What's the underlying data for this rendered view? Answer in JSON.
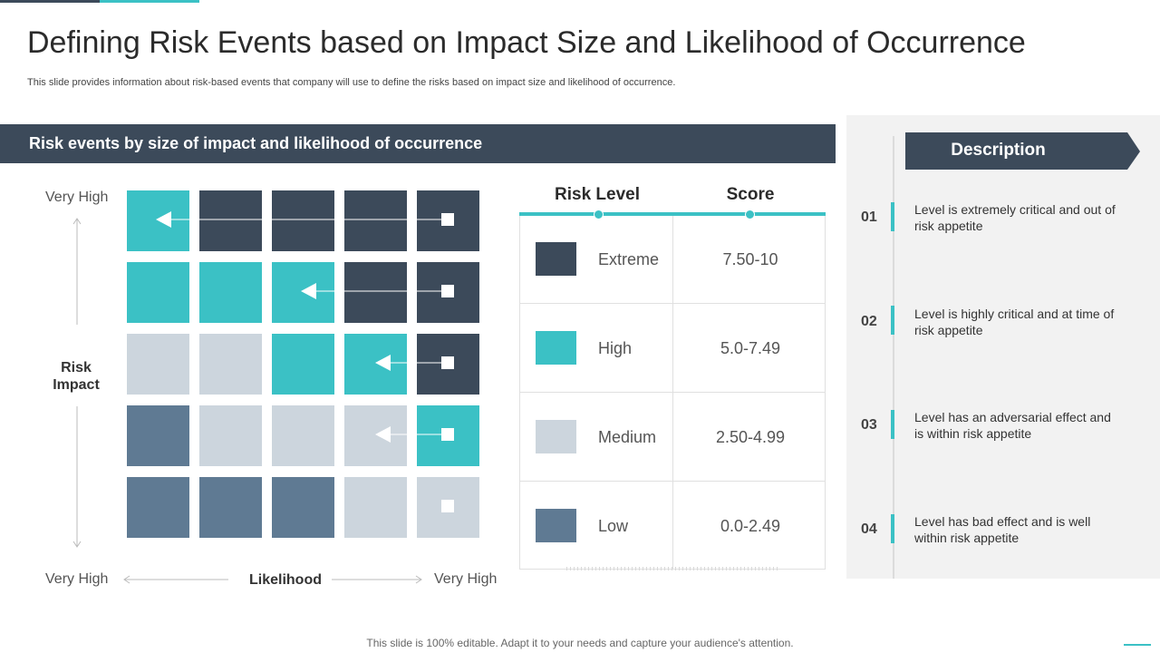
{
  "slide": {
    "title": "Defining Risk Events based on Impact Size and Likelihood of Occurrence",
    "subtitle": "This slide provides information about risk-based events that company will use to define the risks based on impact size and likelihood of occurrence.",
    "banner": "Risk events by size of impact and likelihood of occurrence",
    "footer": "This slide is 100% editable. Adapt it to your needs and capture your audience's attention."
  },
  "matrix": {
    "y_top_label": "Very High",
    "y_axis_label": "Risk Impact",
    "x_left_label": "Very High",
    "x_axis_label": "Likelihood",
    "x_right_label": "Very High"
  },
  "legend": {
    "col_level": "Risk Level",
    "col_score": "Score",
    "rows": [
      {
        "level": "Extreme",
        "score": "7.50-10",
        "color": "#3c4a5a"
      },
      {
        "level": "High",
        "score": "5.0-7.49",
        "color": "#3bc1c5"
      },
      {
        "level": "Medium",
        "score": "2.50-4.99",
        "color": "#ccd5dd"
      },
      {
        "level": "Low",
        "score": "0.0-2.49",
        "color": "#5f7a93"
      }
    ]
  },
  "description": {
    "title": "Description",
    "items": [
      {
        "num": "01",
        "text": "Level is extremely critical and out of risk appetite"
      },
      {
        "num": "02",
        "text": "Level is highly critical and at time of risk appetite"
      },
      {
        "num": "03",
        "text": "Level has an adversarial effect and is within risk appetite"
      },
      {
        "num": "04",
        "text": "Level has bad effect and is well within risk appetite"
      }
    ]
  },
  "colors": {
    "extreme": "#3c4a5a",
    "high": "#3bc1c5",
    "medium": "#ccd5dd",
    "low": "#5f7a93"
  }
}
